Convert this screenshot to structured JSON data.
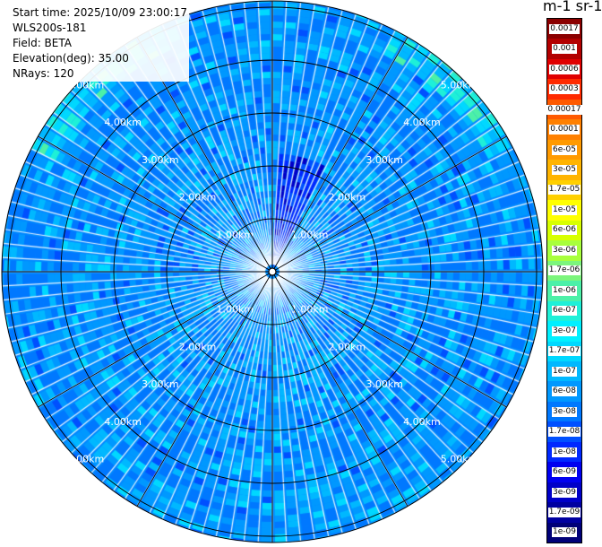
{
  "header": {
    "start_time": "Start time: 2025/10/09 23:00:17",
    "instrument": "WLS200s-181",
    "field": "Field: BETA",
    "elevation": "Elevation(deg): 35.00",
    "nrays": "NRays: 120"
  },
  "colorbar": {
    "units_title": "m-1 sr-1",
    "levels": [
      {
        "label": "0.0017",
        "color": "#8b0000"
      },
      {
        "label": "0.001",
        "color": "#b30000"
      },
      {
        "label": "0.0006",
        "color": "#e00000"
      },
      {
        "label": "0.0003",
        "color": "#ff2a00"
      },
      {
        "label": "0.00017",
        "color": "#ff5a00"
      },
      {
        "label": "0.0001",
        "color": "#ff8000"
      },
      {
        "label": "6e-05",
        "color": "#ff9a00"
      },
      {
        "label": "3e-05",
        "color": "#ffb400"
      },
      {
        "label": "1.7e-05",
        "color": "#ffd000"
      },
      {
        "label": "1e-05",
        "color": "#ffff00"
      },
      {
        "label": "6e-06",
        "color": "#d8ff00"
      },
      {
        "label": "3e-06",
        "color": "#a8ff3c"
      },
      {
        "label": "1.7e-06",
        "color": "#7cf57c"
      },
      {
        "label": "1e-06",
        "color": "#4cf0a8"
      },
      {
        "label": "6e-07",
        "color": "#1ef0d8"
      },
      {
        "label": "3e-07",
        "color": "#00f0ff"
      },
      {
        "label": "1.7e-07",
        "color": "#00d8ff"
      },
      {
        "label": "1e-07",
        "color": "#00b8ff"
      },
      {
        "label": "6e-08",
        "color": "#0098ff"
      },
      {
        "label": "3e-08",
        "color": "#0078ff"
      },
      {
        "label": "1.7e-08",
        "color": "#0050ff"
      },
      {
        "label": "1e-08",
        "color": "#0028ff"
      },
      {
        "label": "6e-09",
        "color": "#0000f0"
      },
      {
        "label": "3e-09",
        "color": "#0000c8"
      },
      {
        "label": "1.7e-09",
        "color": "#0000a0"
      },
      {
        "label": "1e-09",
        "color": "#000078"
      }
    ]
  },
  "ppi": {
    "range_ring_labels": [
      "1.00km",
      "2.00km",
      "3.00km",
      "4.00km",
      "5.00km"
    ]
  }
}
